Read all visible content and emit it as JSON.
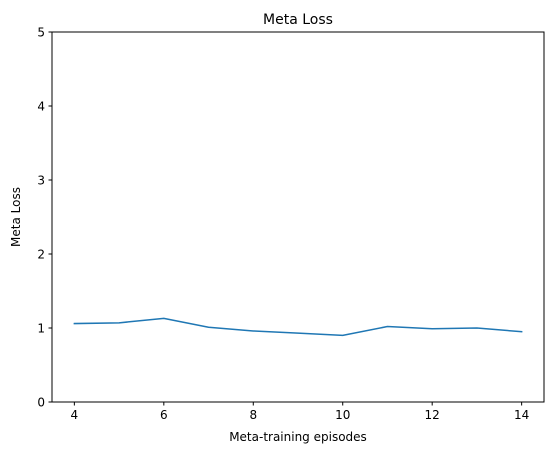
{
  "chart_data": {
    "type": "line",
    "title": "Meta Loss",
    "xlabel": "Meta-training episodes",
    "ylabel": "Meta Loss",
    "xlim": [
      3.5,
      14.5
    ],
    "ylim": [
      0,
      5
    ],
    "xticks": [
      4,
      6,
      8,
      10,
      12,
      14
    ],
    "yticks": [
      0,
      1,
      2,
      3,
      4,
      5
    ],
    "grid": false,
    "series": [
      {
        "color": "#1f77b4",
        "x": [
          4,
          5,
          6,
          7,
          8,
          9,
          10,
          11,
          12,
          13,
          14
        ],
        "y": [
          1.06,
          1.07,
          1.13,
          1.01,
          0.96,
          0.93,
          0.9,
          1.02,
          0.99,
          1.0,
          0.95
        ]
      }
    ]
  }
}
